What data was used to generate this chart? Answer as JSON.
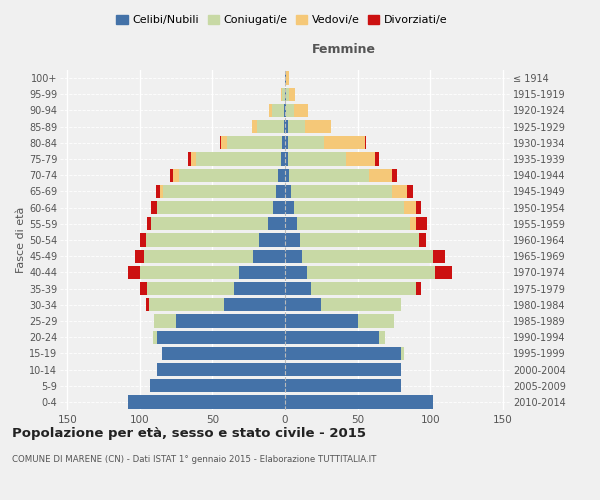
{
  "age_groups": [
    "0-4",
    "5-9",
    "10-14",
    "15-19",
    "20-24",
    "25-29",
    "30-34",
    "35-39",
    "40-44",
    "45-49",
    "50-54",
    "55-59",
    "60-64",
    "65-69",
    "70-74",
    "75-79",
    "80-84",
    "85-89",
    "90-94",
    "95-99",
    "100+"
  ],
  "birth_years": [
    "2010-2014",
    "2005-2009",
    "2000-2004",
    "1995-1999",
    "1990-1994",
    "1985-1989",
    "1980-1984",
    "1975-1979",
    "1970-1974",
    "1965-1969",
    "1960-1964",
    "1955-1959",
    "1950-1954",
    "1945-1949",
    "1940-1944",
    "1935-1939",
    "1930-1934",
    "1925-1929",
    "1920-1924",
    "1915-1919",
    "≤ 1914"
  ],
  "males": {
    "celibi": [
      108,
      93,
      88,
      85,
      88,
      75,
      42,
      35,
      32,
      22,
      18,
      12,
      8,
      6,
      5,
      3,
      2,
      1,
      1,
      0,
      0
    ],
    "coniugati": [
      0,
      0,
      0,
      0,
      3,
      15,
      52,
      60,
      68,
      75,
      78,
      80,
      80,
      78,
      68,
      58,
      38,
      18,
      8,
      2,
      0
    ],
    "vedovi": [
      0,
      0,
      0,
      0,
      0,
      0,
      0,
      0,
      0,
      0,
      0,
      0,
      0,
      2,
      4,
      4,
      4,
      4,
      2,
      1,
      0
    ],
    "divorziati": [
      0,
      0,
      0,
      0,
      0,
      0,
      2,
      5,
      8,
      6,
      4,
      3,
      4,
      3,
      2,
      2,
      1,
      0,
      0,
      0,
      0
    ]
  },
  "females": {
    "nubili": [
      102,
      80,
      80,
      80,
      65,
      50,
      25,
      18,
      15,
      12,
      10,
      8,
      6,
      4,
      3,
      2,
      2,
      2,
      1,
      1,
      1
    ],
    "coniugate": [
      0,
      0,
      0,
      2,
      4,
      25,
      55,
      72,
      88,
      90,
      82,
      78,
      76,
      70,
      55,
      40,
      25,
      12,
      5,
      2,
      0
    ],
    "vedove": [
      0,
      0,
      0,
      0,
      0,
      0,
      0,
      0,
      0,
      0,
      0,
      4,
      8,
      10,
      16,
      20,
      28,
      18,
      10,
      4,
      2
    ],
    "divorziate": [
      0,
      0,
      0,
      0,
      0,
      0,
      0,
      4,
      12,
      8,
      5,
      8,
      4,
      4,
      3,
      3,
      1,
      0,
      0,
      0,
      0
    ]
  },
  "colors": {
    "celibi": "#4472a8",
    "coniugati": "#c8d9a5",
    "vedovi": "#f5c878",
    "divorziati": "#cc1111"
  },
  "xlim": 155,
  "title": "Popolazione per età, sesso e stato civile - 2015",
  "subtitle": "COMUNE DI MARENE (CN) - Dati ISTAT 1° gennaio 2015 - Elaborazione TUTTITALIA.IT",
  "ylabel_left": "Fasce di età",
  "legend_labels": [
    "Celibi/Nubili",
    "Coniugati/e",
    "Vedovi/e",
    "Divorziati/e"
  ],
  "bg_color": "#f0f0f0",
  "grid_color": "#ffffff",
  "text_color": "#555555"
}
